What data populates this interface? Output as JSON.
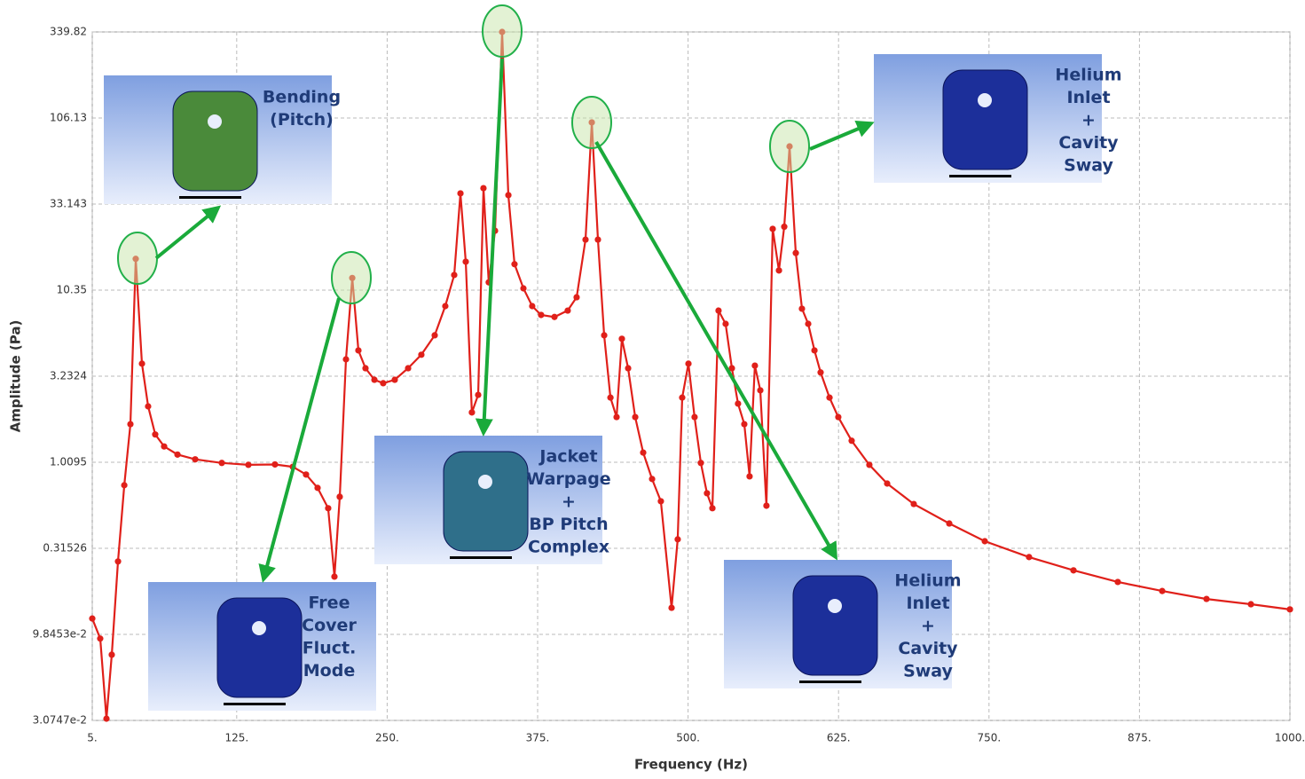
{
  "chart_data": {
    "type": "line",
    "x_label": "Frequency (Hz)",
    "y_label": "Amplitude (Pa)",
    "log_y": true,
    "grid": true,
    "color": "#e0201a",
    "xlim": [
      5,
      1000
    ],
    "ylim": [
      0.030747,
      339.82
    ],
    "xticks": [
      {
        "value": 5,
        "label": "5."
      },
      {
        "value": 125,
        "label": "125."
      },
      {
        "value": 250,
        "label": "250."
      },
      {
        "value": 375,
        "label": "375."
      },
      {
        "value": 500,
        "label": "500."
      },
      {
        "value": 625,
        "label": "625."
      },
      {
        "value": 750,
        "label": "750."
      },
      {
        "value": 875,
        "label": "875."
      },
      {
        "value": 1000,
        "label": "1000."
      }
    ],
    "yticks": [
      {
        "value": 0.030747,
        "label": "3.0747e-2"
      },
      {
        "value": 0.098453,
        "label": "9.8453e-2"
      },
      0.31526,
      1.0095,
      3.2324,
      10.35,
      33.143,
      106.13,
      339.82
    ],
    "x": [
      5,
      11.6,
      16.8,
      21.2,
      26.4,
      31.6,
      36.7,
      41.1,
      46.3,
      51.4,
      57.3,
      64.7,
      75.8,
      90.5,
      112.6,
      134.7,
      156.8,
      171.6,
      182.6,
      192.2,
      201,
      206.2,
      210.6,
      215.8,
      221,
      226.1,
      232,
      239.4,
      246.7,
      256.3,
      267.4,
      278.4,
      289.5,
      298.3,
      305.7,
      310.9,
      315.3,
      320.4,
      325.6,
      330,
      334.4,
      339.6,
      345.5,
      350.7,
      355.8,
      363.2,
      370.5,
      377.9,
      389,
      400,
      407.4,
      414.8,
      420,
      425.1,
      430.3,
      435.5,
      440.6,
      445,
      450.2,
      456.1,
      462.7,
      470.1,
      477.4,
      486.3,
      491.4,
      495.1,
      500.3,
      505.4,
      510.6,
      515.7,
      520.2,
      525.3,
      531.2,
      536.4,
      541.5,
      546.7,
      551.1,
      555.5,
      560,
      565.1,
      570.3,
      575.5,
      579.9,
      584.3,
      589.5,
      594.6,
      599.8,
      605,
      610.1,
      617.5,
      624.8,
      635.9,
      650.6,
      665.4,
      687.5,
      717,
      746.5,
      783.3,
      820.2,
      857,
      893.9,
      930.7,
      967.6,
      1000
    ],
    "values": [
      0.122,
      0.093,
      0.0315,
      0.0748,
      0.264,
      0.74,
      1.69,
      15.8,
      3.83,
      2.15,
      1.47,
      1.25,
      1.12,
      1.05,
      1.0,
      0.975,
      0.98,
      0.95,
      0.855,
      0.714,
      0.542,
      0.215,
      0.633,
      4.06,
      12.2,
      4.58,
      3.6,
      3.08,
      2.94,
      3.08,
      3.6,
      4.32,
      5.62,
      8.34,
      12.7,
      38.3,
      15.2,
      1.98,
      2.51,
      41.1,
      11.5,
      23.1,
      339.82,
      37.4,
      14.7,
      10.6,
      8.34,
      7.4,
      7.2,
      7.85,
      9.4,
      20.5,
      100,
      20.5,
      5.62,
      2.42,
      1.86,
      5.36,
      3.6,
      1.86,
      1.15,
      0.805,
      0.596,
      0.141,
      0.356,
      2.42,
      3.83,
      1.86,
      1.0,
      0.664,
      0.542,
      7.85,
      6.56,
      3.6,
      2.23,
      1.69,
      0.834,
      3.73,
      2.67,
      0.561,
      23.7,
      13.5,
      24.4,
      72.3,
      17.1,
      8.05,
      6.56,
      4.58,
      3.4,
      2.42,
      1.86,
      1.35,
      0.975,
      0.757,
      0.574,
      0.441,
      0.347,
      0.28,
      0.234,
      0.2,
      0.177,
      0.159,
      0.148,
      0.138
    ],
    "annotations": [
      {
        "lines": [
          "Bending",
          "(Pitch)"
        ]
      },
      {
        "lines": [
          "Free",
          "Cover",
          "Fluct.",
          "Mode"
        ]
      },
      {
        "lines": [
          "Jacket",
          "Warpage",
          "+",
          "BP Pitch",
          "Complex"
        ]
      },
      {
        "lines": [
          "Helium",
          "Inlet",
          "+",
          "Cavity",
          "Sway"
        ]
      },
      {
        "lines": [
          "Helium",
          "Inlet",
          "+",
          "Cavity",
          "Sway"
        ]
      }
    ]
  }
}
